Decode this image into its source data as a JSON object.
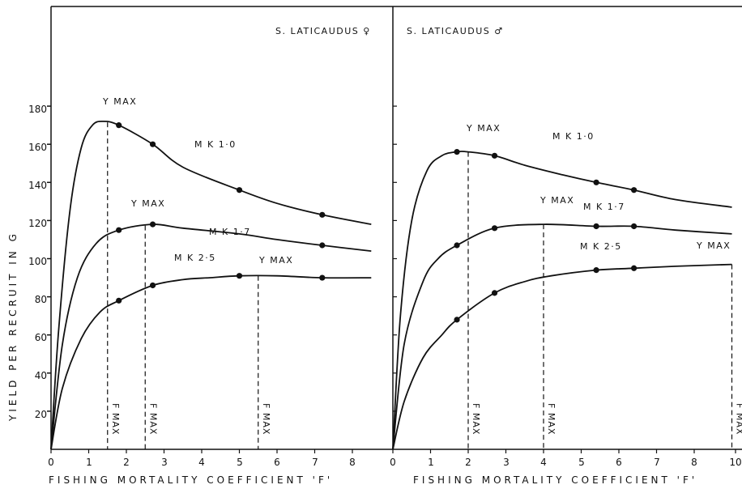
{
  "chart_data": {
    "type": "line",
    "xlabel": "FISHING MORTALITY COEFFICIENT 'F'",
    "ylabel": "YIELD PER RECRUIT IN G",
    "y_ticks": [
      "20",
      "40",
      "60",
      "80",
      "100",
      "120",
      "140",
      "160",
      "180"
    ],
    "panels": [
      {
        "title": "S. LATICAUDUS ♀",
        "x_ticks": [
          "0",
          "1",
          "2",
          "3",
          "4",
          "5",
          "6",
          "7",
          "8"
        ],
        "xlim": [
          0,
          8.5
        ],
        "ylim": [
          0,
          180
        ],
        "series": [
          {
            "name": "M K 1·0",
            "points": [
              [
                0,
                0
              ],
              [
                0.2,
                62
              ],
              [
                0.5,
                125
              ],
              [
                0.8,
                158
              ],
              [
                1.1,
                170
              ],
              [
                1.4,
                172
              ],
              [
                1.8,
                170
              ],
              [
                2.7,
                160
              ],
              [
                3.5,
                148
              ],
              [
                5.0,
                136
              ],
              [
                6.0,
                129
              ],
              [
                7.2,
                123
              ],
              [
                8.5,
                118
              ]
            ],
            "markers": [
              [
                1.8,
                170
              ],
              [
                2.7,
                160
              ],
              [
                5.0,
                136
              ],
              [
                7.2,
                123
              ]
            ],
            "ymax_label": "Y MAX",
            "ymax_x": 1.5,
            "fmax_label": "F MAX"
          },
          {
            "name": "M K 1·7",
            "points": [
              [
                0,
                0
              ],
              [
                0.3,
                55
              ],
              [
                0.7,
                90
              ],
              [
                1.2,
                108
              ],
              [
                1.8,
                115
              ],
              [
                2.7,
                118
              ],
              [
                3.5,
                116
              ],
              [
                5.0,
                113
              ],
              [
                6.0,
                110
              ],
              [
                7.2,
                107
              ],
              [
                8.5,
                104
              ]
            ],
            "markers": [
              [
                1.8,
                115
              ],
              [
                2.7,
                118
              ],
              [
                7.2,
                107
              ]
            ],
            "ymax_label": "Y MAX",
            "ymax_x": 2.5,
            "fmax_label": "F MAX"
          },
          {
            "name": "M K 2·5",
            "points": [
              [
                0,
                0
              ],
              [
                0.3,
                32
              ],
              [
                0.8,
                58
              ],
              [
                1.3,
                72
              ],
              [
                1.8,
                78
              ],
              [
                2.7,
                86
              ],
              [
                3.5,
                89
              ],
              [
                4.2,
                90
              ],
              [
                5.0,
                91
              ],
              [
                6.0,
                91
              ],
              [
                7.2,
                90
              ],
              [
                8.5,
                90
              ]
            ],
            "markers": [
              [
                1.8,
                78
              ],
              [
                2.7,
                86
              ],
              [
                5.0,
                91
              ],
              [
                7.2,
                90
              ]
            ],
            "ymax_label": "Y MAX",
            "ymax_x": 5.5,
            "fmax_label": "F MAX"
          }
        ]
      },
      {
        "title": "S. LATICAUDUS ♂",
        "x_ticks": [
          "0",
          "1",
          "2",
          "3",
          "4",
          "5",
          "6",
          "7",
          "8",
          "10"
        ],
        "xlim": [
          0,
          9.0
        ],
        "ylim": [
          0,
          180
        ],
        "series": [
          {
            "name": "M K 1·0",
            "points": [
              [
                0,
                0
              ],
              [
                0.2,
                70
              ],
              [
                0.5,
                120
              ],
              [
                0.9,
                146
              ],
              [
                1.3,
                154
              ],
              [
                1.7,
                156
              ],
              [
                2.0,
                156
              ],
              [
                2.7,
                154
              ],
              [
                3.5,
                149
              ],
              [
                4.5,
                144
              ],
              [
                5.4,
                140
              ],
              [
                6.4,
                136
              ],
              [
                7.5,
                131
              ],
              [
                9.0,
                127
              ]
            ],
            "markers": [
              [
                1.7,
                156
              ],
              [
                2.7,
                154
              ],
              [
                5.4,
                140
              ],
              [
                6.4,
                136
              ]
            ],
            "ymax_label": "Y MAX",
            "ymax_x": 2.0,
            "fmax_label": "F MAX"
          },
          {
            "name": "M K 1·7",
            "points": [
              [
                0,
                0
              ],
              [
                0.3,
                55
              ],
              [
                0.8,
                88
              ],
              [
                1.2,
                100
              ],
              [
                1.7,
                107
              ],
              [
                2.7,
                116
              ],
              [
                4.0,
                118
              ],
              [
                5.4,
                117
              ],
              [
                6.4,
                117
              ],
              [
                7.5,
                115
              ],
              [
                9.0,
                113
              ]
            ],
            "markers": [
              [
                1.7,
                107
              ],
              [
                2.7,
                116
              ],
              [
                5.4,
                117
              ],
              [
                6.4,
                117
              ]
            ],
            "ymax_label": "Y MAX",
            "ymax_x": 4.0,
            "fmax_label": "F MAX"
          },
          {
            "name": "M K 2·5",
            "points": [
              [
                0,
                0
              ],
              [
                0.3,
                25
              ],
              [
                0.8,
                48
              ],
              [
                1.3,
                60
              ],
              [
                1.7,
                68
              ],
              [
                2.7,
                82
              ],
              [
                3.5,
                88
              ],
              [
                4.2,
                91
              ],
              [
                5.4,
                94
              ],
              [
                6.4,
                95
              ],
              [
                7.5,
                96
              ],
              [
                9.0,
                97
              ]
            ],
            "markers": [
              [
                1.7,
                68
              ],
              [
                2.7,
                82
              ],
              [
                5.4,
                94
              ],
              [
                6.4,
                95
              ]
            ],
            "ymax_label": "Y MAX",
            "ymax_x": 9.0,
            "fmax_label": "F MAX"
          }
        ]
      }
    ]
  }
}
